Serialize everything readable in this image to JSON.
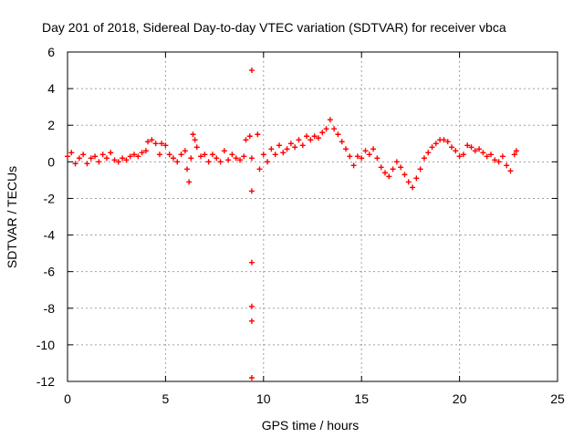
{
  "chart_data": {
    "type": "scatter",
    "title": "Day 201 of 2018, Sidereal Day-to-day VTEC variation (SDTVAR) for receiver vbca",
    "xlabel": "GPS time / hours",
    "ylabel": "SDTVAR / TECUs",
    "xlim": [
      0,
      25
    ],
    "ylim": [
      -12,
      6
    ],
    "x_ticks": [
      0,
      5,
      10,
      15,
      20,
      25
    ],
    "x_tick_labels": [
      "0",
      "5",
      "10",
      "15",
      "20",
      "25"
    ],
    "y_ticks": [
      -12,
      -10,
      -8,
      -6,
      -4,
      -2,
      0,
      2,
      4,
      6
    ],
    "y_tick_labels": [
      "-12",
      "-10",
      "-8",
      "-6",
      "-4",
      "-2",
      "0",
      "2",
      "4",
      "6"
    ],
    "grid": true,
    "marker": "+",
    "series_color": "#ff0000",
    "series": [
      {
        "name": "SDTVAR",
        "points": [
          [
            0.0,
            0.3
          ],
          [
            0.2,
            0.5
          ],
          [
            0.4,
            -0.1
          ],
          [
            0.6,
            0.2
          ],
          [
            0.8,
            0.4
          ],
          [
            1.0,
            -0.1
          ],
          [
            1.2,
            0.2
          ],
          [
            1.4,
            0.3
          ],
          [
            1.6,
            0.0
          ],
          [
            1.8,
            0.4
          ],
          [
            2.0,
            0.2
          ],
          [
            2.2,
            0.5
          ],
          [
            2.4,
            0.1
          ],
          [
            2.6,
            0.0
          ],
          [
            2.8,
            0.2
          ],
          [
            3.0,
            0.1
          ],
          [
            3.2,
            0.3
          ],
          [
            3.4,
            0.4
          ],
          [
            3.6,
            0.3
          ],
          [
            3.8,
            0.5
          ],
          [
            4.0,
            0.6
          ],
          [
            4.1,
            1.1
          ],
          [
            4.3,
            1.2
          ],
          [
            4.5,
            1.0
          ],
          [
            4.7,
            0.4
          ],
          [
            4.8,
            1.0
          ],
          [
            5.0,
            0.9
          ],
          [
            5.2,
            0.4
          ],
          [
            5.4,
            0.2
          ],
          [
            5.6,
            0.0
          ],
          [
            5.8,
            0.4
          ],
          [
            6.0,
            0.6
          ],
          [
            6.1,
            -0.4
          ],
          [
            6.2,
            -1.1
          ],
          [
            6.3,
            0.2
          ],
          [
            6.4,
            1.5
          ],
          [
            6.5,
            1.2
          ],
          [
            6.6,
            0.8
          ],
          [
            6.8,
            0.3
          ],
          [
            7.0,
            0.4
          ],
          [
            7.2,
            0.0
          ],
          [
            7.4,
            0.4
          ],
          [
            7.6,
            0.2
          ],
          [
            7.8,
            0.0
          ],
          [
            8.0,
            0.6
          ],
          [
            8.2,
            0.1
          ],
          [
            8.4,
            0.4
          ],
          [
            8.6,
            0.2
          ],
          [
            8.8,
            0.1
          ],
          [
            9.0,
            0.3
          ],
          [
            9.1,
            1.2
          ],
          [
            9.3,
            1.4
          ],
          [
            9.4,
            0.2
          ],
          [
            9.4,
            5.0
          ],
          [
            9.4,
            -1.6
          ],
          [
            9.4,
            -5.5
          ],
          [
            9.4,
            -7.9
          ],
          [
            9.4,
            -8.7
          ],
          [
            9.4,
            -11.8
          ],
          [
            9.7,
            1.5
          ],
          [
            9.8,
            -0.4
          ],
          [
            10.0,
            0.4
          ],
          [
            10.2,
            0.0
          ],
          [
            10.4,
            0.7
          ],
          [
            10.6,
            0.4
          ],
          [
            10.8,
            0.9
          ],
          [
            11.0,
            0.5
          ],
          [
            11.2,
            0.7
          ],
          [
            11.4,
            1.0
          ],
          [
            11.6,
            0.8
          ],
          [
            11.8,
            1.2
          ],
          [
            12.0,
            0.9
          ],
          [
            12.2,
            1.4
          ],
          [
            12.4,
            1.2
          ],
          [
            12.6,
            1.4
          ],
          [
            12.8,
            1.3
          ],
          [
            13.0,
            1.6
          ],
          [
            13.2,
            1.8
          ],
          [
            13.4,
            2.3
          ],
          [
            13.6,
            1.8
          ],
          [
            13.8,
            1.5
          ],
          [
            14.0,
            1.1
          ],
          [
            14.2,
            0.7
          ],
          [
            14.4,
            0.3
          ],
          [
            14.6,
            -0.2
          ],
          [
            14.8,
            0.3
          ],
          [
            15.0,
            0.2
          ],
          [
            15.2,
            0.6
          ],
          [
            15.4,
            0.4
          ],
          [
            15.6,
            0.7
          ],
          [
            15.8,
            0.2
          ],
          [
            16.0,
            -0.3
          ],
          [
            16.2,
            -0.6
          ],
          [
            16.4,
            -0.8
          ],
          [
            16.6,
            -0.4
          ],
          [
            16.8,
            0.0
          ],
          [
            17.0,
            -0.3
          ],
          [
            17.2,
            -0.7
          ],
          [
            17.4,
            -1.1
          ],
          [
            17.6,
            -1.4
          ],
          [
            17.8,
            -0.9
          ],
          [
            18.0,
            -0.4
          ],
          [
            18.2,
            0.2
          ],
          [
            18.4,
            0.5
          ],
          [
            18.6,
            0.8
          ],
          [
            18.8,
            1.0
          ],
          [
            19.0,
            1.2
          ],
          [
            19.2,
            1.2
          ],
          [
            19.4,
            1.1
          ],
          [
            19.6,
            0.8
          ],
          [
            19.8,
            0.6
          ],
          [
            20.0,
            0.3
          ],
          [
            20.2,
            0.4
          ],
          [
            20.4,
            0.9
          ],
          [
            20.6,
            0.8
          ],
          [
            20.8,
            0.6
          ],
          [
            21.0,
            0.7
          ],
          [
            21.2,
            0.5
          ],
          [
            21.4,
            0.3
          ],
          [
            21.6,
            0.4
          ],
          [
            21.8,
            0.1
          ],
          [
            22.0,
            0.0
          ],
          [
            22.2,
            0.3
          ],
          [
            22.4,
            -0.2
          ],
          [
            22.6,
            -0.5
          ],
          [
            22.8,
            0.4
          ],
          [
            22.9,
            0.6
          ]
        ]
      }
    ]
  }
}
